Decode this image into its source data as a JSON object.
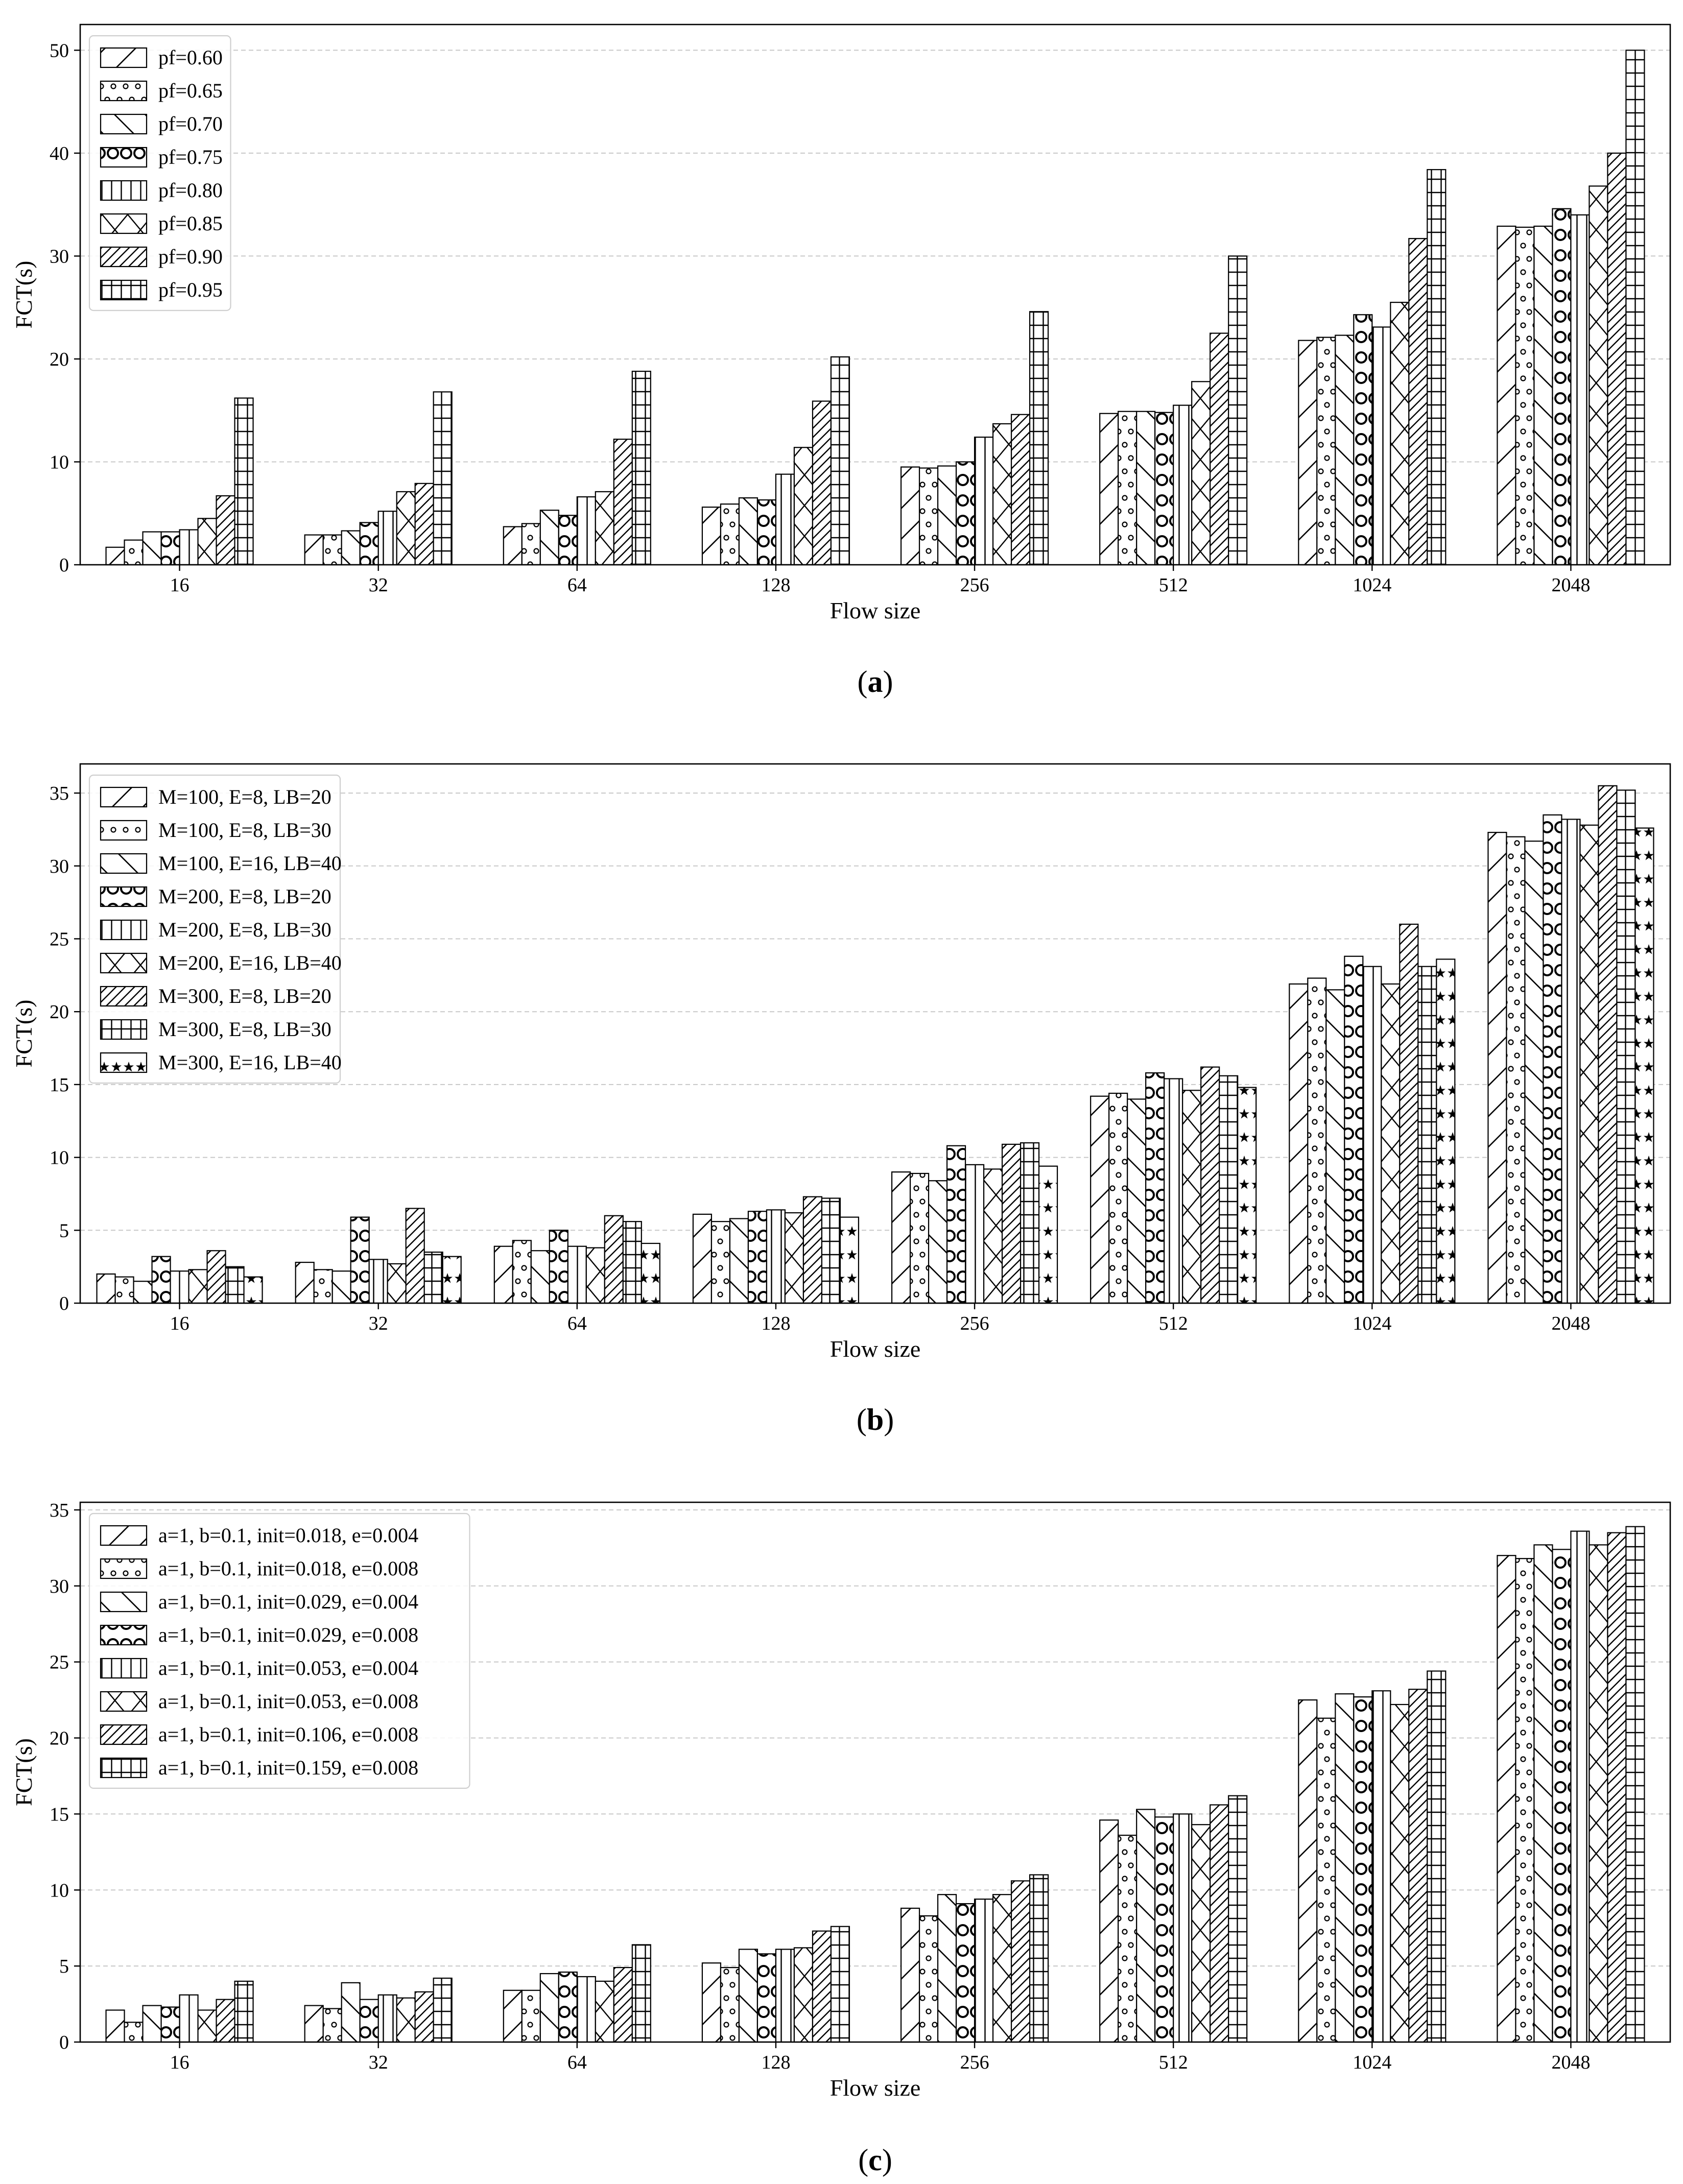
{
  "panel_captions": [
    "(a)",
    "(b)",
    "(c)"
  ],
  "chart_data": [
    {
      "type": "bar",
      "caption": "(a)",
      "xlabel": "Flow size",
      "ylabel": "FCT(s)",
      "ylim": [
        0,
        52.5
      ],
      "yticks": [
        0,
        10,
        20,
        30,
        40,
        50
      ],
      "grid": true,
      "legend_position": "top-left",
      "categories": [
        "16",
        "32",
        "64",
        "128",
        "256",
        "512",
        "1024",
        "2048"
      ],
      "series": [
        {
          "name": "pf=0.60",
          "pattern": "diag-right",
          "values": [
            1.7,
            2.9,
            3.7,
            5.6,
            9.5,
            14.7,
            21.8,
            32.9
          ]
        },
        {
          "name": "pf=0.65",
          "pattern": "small-circles",
          "values": [
            2.4,
            2.9,
            4.0,
            5.9,
            9.4,
            14.9,
            22.1,
            32.8
          ]
        },
        {
          "name": "pf=0.70",
          "pattern": "diag-left",
          "values": [
            3.2,
            3.3,
            5.3,
            6.5,
            9.6,
            14.9,
            22.3,
            32.9
          ]
        },
        {
          "name": "pf=0.75",
          "pattern": "big-circles",
          "values": [
            3.2,
            4.1,
            4.8,
            6.3,
            10.0,
            14.8,
            24.3,
            34.6
          ]
        },
        {
          "name": "pf=0.80",
          "pattern": "vertical",
          "values": [
            3.4,
            5.2,
            6.6,
            8.8,
            12.4,
            15.5,
            23.1,
            34.0
          ]
        },
        {
          "name": "pf=0.85",
          "pattern": "crosshatch-x",
          "values": [
            4.5,
            7.1,
            7.1,
            11.4,
            13.7,
            17.8,
            25.5,
            36.8
          ]
        },
        {
          "name": "pf=0.90",
          "pattern": "dense-diag",
          "values": [
            6.7,
            7.9,
            12.2,
            15.9,
            14.6,
            22.5,
            31.7,
            40.0
          ]
        },
        {
          "name": "pf=0.95",
          "pattern": "grid",
          "values": [
            16.2,
            16.8,
            18.8,
            20.2,
            24.6,
            30.0,
            38.4,
            50.0
          ]
        }
      ]
    },
    {
      "type": "bar",
      "caption": "(b)",
      "xlabel": "Flow size",
      "ylabel": "FCT(s)",
      "ylim": [
        0,
        37
      ],
      "yticks": [
        0,
        5,
        10,
        15,
        20,
        25,
        30,
        35
      ],
      "grid": true,
      "legend_position": "top-left",
      "categories": [
        "16",
        "32",
        "64",
        "128",
        "256",
        "512",
        "1024",
        "2048"
      ],
      "series": [
        {
          "name": "M=100, E=8, LB=20",
          "pattern": "diag-right",
          "values": [
            2.0,
            2.8,
            3.9,
            6.1,
            9.0,
            14.2,
            21.9,
            32.3
          ]
        },
        {
          "name": "M=100, E=8, LB=30",
          "pattern": "small-circles",
          "values": [
            1.8,
            2.3,
            4.3,
            5.6,
            8.9,
            14.4,
            22.3,
            32.0
          ]
        },
        {
          "name": "M=100, E=16, LB=40",
          "pattern": "diag-left",
          "values": [
            1.5,
            2.2,
            3.6,
            5.8,
            8.4,
            14.0,
            21.5,
            31.7
          ]
        },
        {
          "name": "M=200, E=8, LB=20",
          "pattern": "big-circles",
          "values": [
            3.2,
            5.9,
            5.0,
            6.3,
            10.8,
            15.8,
            23.8,
            33.5
          ]
        },
        {
          "name": "M=200, E=8, LB=30",
          "pattern": "vertical",
          "values": [
            2.2,
            3.0,
            3.9,
            6.4,
            9.5,
            15.4,
            23.1,
            33.2
          ]
        },
        {
          "name": "M=200, E=16, LB=40",
          "pattern": "crosshatch-x",
          "values": [
            2.3,
            2.7,
            3.8,
            6.2,
            9.2,
            14.6,
            21.9,
            32.8
          ]
        },
        {
          "name": "M=300, E=8, LB=20",
          "pattern": "dense-diag",
          "values": [
            3.6,
            6.5,
            6.0,
            7.3,
            10.9,
            16.2,
            26.0,
            35.5
          ]
        },
        {
          "name": "M=300, E=8, LB=30",
          "pattern": "grid",
          "values": [
            2.5,
            3.5,
            5.6,
            7.2,
            11.0,
            15.6,
            23.1,
            35.2
          ]
        },
        {
          "name": "M=300, E=16, LB=40",
          "pattern": "stars",
          "values": [
            1.8,
            3.2,
            4.1,
            5.9,
            9.4,
            14.8,
            23.6,
            32.6
          ]
        }
      ]
    },
    {
      "type": "bar",
      "caption": "(c)",
      "xlabel": "Flow size",
      "ylabel": "FCT(s)",
      "ylim": [
        0,
        35.5
      ],
      "yticks": [
        0,
        5,
        10,
        15,
        20,
        25,
        30,
        35
      ],
      "grid": true,
      "legend_position": "top-left",
      "categories": [
        "16",
        "32",
        "64",
        "128",
        "256",
        "512",
        "1024",
        "2048"
      ],
      "series": [
        {
          "name": "a=1, b=0.1, init=0.018, e=0.004",
          "pattern": "diag-right",
          "values": [
            2.1,
            2.4,
            3.4,
            5.2,
            8.8,
            14.6,
            22.5,
            32.0
          ]
        },
        {
          "name": "a=1, b=0.1, init=0.018, e=0.008",
          "pattern": "small-circles",
          "values": [
            1.3,
            2.2,
            3.4,
            4.9,
            8.3,
            13.6,
            21.3,
            31.8
          ]
        },
        {
          "name": "a=1, b=0.1, init=0.029, e=0.004",
          "pattern": "diag-left",
          "values": [
            2.4,
            3.9,
            4.5,
            6.1,
            9.7,
            15.3,
            22.9,
            32.7
          ]
        },
        {
          "name": "a=1, b=0.1, init=0.029, e=0.008",
          "pattern": "big-circles",
          "values": [
            2.3,
            2.8,
            4.6,
            5.8,
            9.1,
            14.8,
            22.7,
            32.4
          ]
        },
        {
          "name": "a=1, b=0.1, init=0.053, e=0.004",
          "pattern": "vertical",
          "values": [
            3.1,
            3.1,
            4.3,
            6.1,
            9.4,
            15.0,
            23.1,
            33.6
          ]
        },
        {
          "name": "a=1, b=0.1, init=0.053, e=0.008",
          "pattern": "crosshatch-x",
          "values": [
            2.1,
            2.9,
            4.0,
            6.2,
            9.7,
            14.3,
            22.2,
            32.7
          ]
        },
        {
          "name": "a=1, b=0.1, init=0.106, e=0.008",
          "pattern": "dense-diag",
          "values": [
            2.8,
            3.3,
            4.9,
            7.3,
            10.6,
            15.6,
            23.2,
            33.5
          ]
        },
        {
          "name": "a=1, b=0.1, init=0.159, e=0.008",
          "pattern": "grid",
          "values": [
            4.0,
            4.2,
            6.4,
            7.6,
            11.0,
            16.2,
            24.4,
            33.9
          ]
        }
      ]
    }
  ]
}
